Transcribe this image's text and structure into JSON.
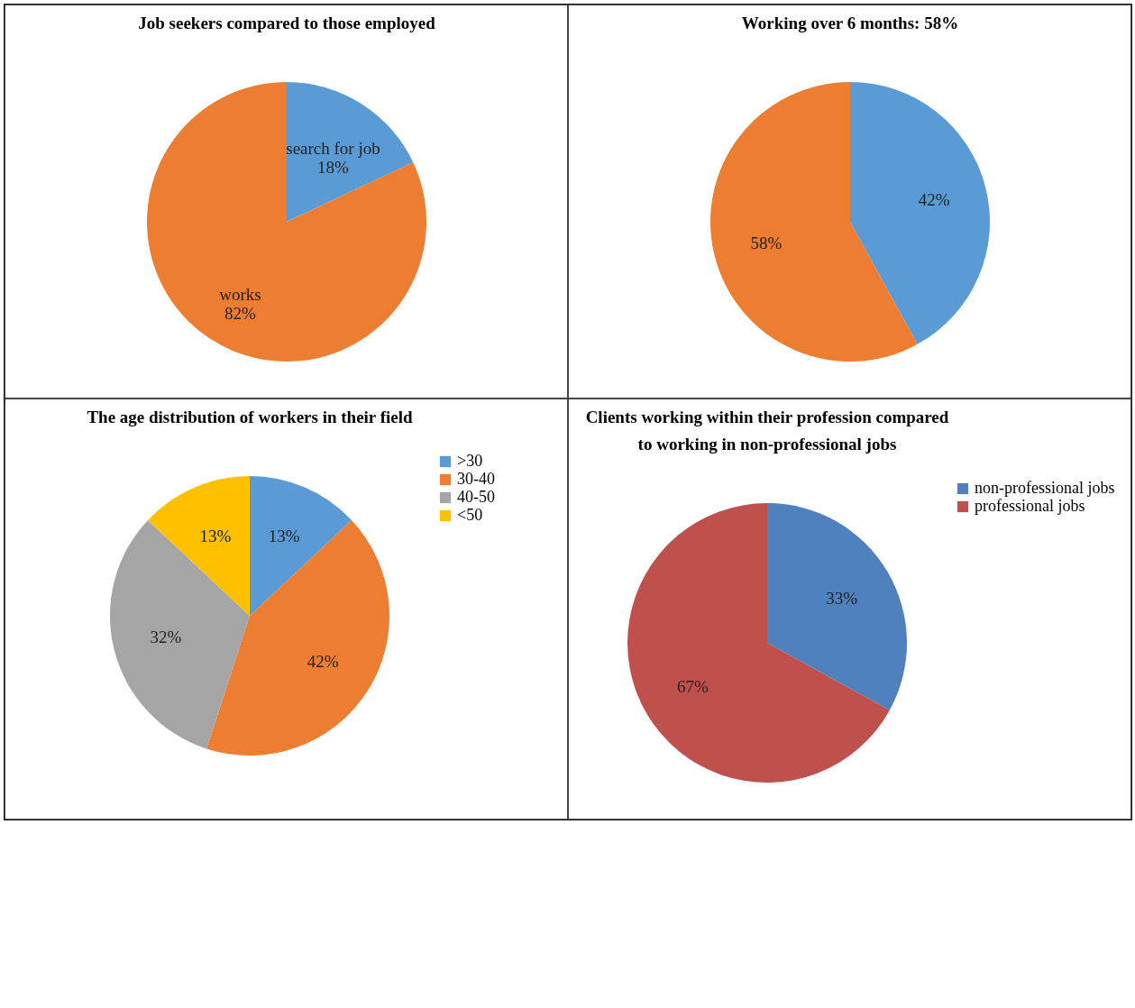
{
  "chart_data": [
    {
      "type": "pie",
      "title": "Job  seekers compared to those employed",
      "categories": [
        "search for job",
        "works"
      ],
      "values": [
        18,
        82
      ],
      "value_labels": [
        "18%",
        "82%"
      ],
      "colors": [
        "#5b9bd5",
        "#ed7d31"
      ],
      "legend": false
    },
    {
      "type": "pie",
      "title": "Working  over 6 months: 58%",
      "categories": [
        null,
        null
      ],
      "values": [
        42,
        58
      ],
      "value_labels": [
        "42%",
        "58%"
      ],
      "colors": [
        "#5b9bd5",
        "#ed7d31"
      ],
      "legend": false
    },
    {
      "type": "pie",
      "title": "The age distribution of workers in their field",
      "categories": [
        ">30",
        "30-40",
        "40-50",
        "<50"
      ],
      "values": [
        13,
        42,
        32,
        13
      ],
      "value_labels": [
        "13%",
        "42%",
        "32%",
        "13%"
      ],
      "colors": [
        "#5b9bd5",
        "#ed7d31",
        "#a5a5a5",
        "#ffc000"
      ],
      "legend": "right"
    },
    {
      "type": "pie",
      "title": "Clients working within their profession compared to working in non-professional jobs",
      "categories": [
        "non-professional jobs",
        "professional jobs"
      ],
      "values": [
        33,
        67
      ],
      "value_labels": [
        "33%",
        "67%"
      ],
      "colors": [
        "#4f81bd",
        "#c0504d"
      ],
      "legend": "right"
    }
  ]
}
